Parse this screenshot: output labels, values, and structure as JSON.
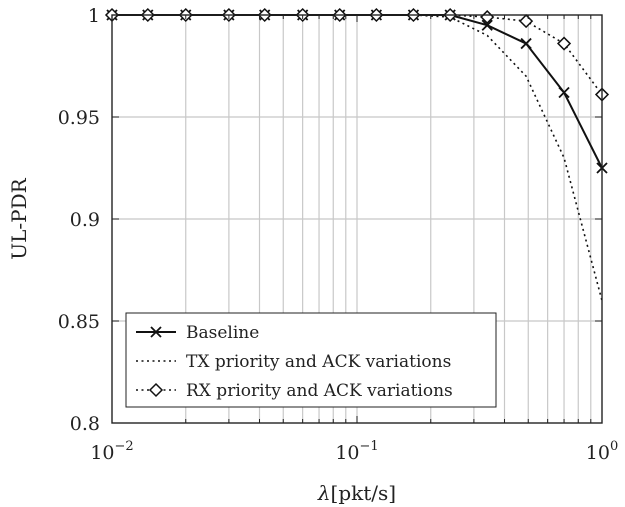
{
  "chart_data": {
    "type": "line",
    "xscale": "log",
    "xlim": [
      0.01,
      1
    ],
    "ylim": [
      0.8,
      1.0
    ],
    "xlabel_symbol": "λ",
    "xlabel_unit": "[pkt/s]",
    "ylabel": "UL-PDR",
    "xticks": [
      {
        "base": "10",
        "exp": "−2",
        "value": 0.01
      },
      {
        "base": "10",
        "exp": "−1",
        "value": 0.1
      },
      {
        "base": "10",
        "exp": "0",
        "value": 1
      }
    ],
    "yticks": [
      {
        "label": "0.8",
        "value": 0.8
      },
      {
        "label": "0.85",
        "value": 0.85
      },
      {
        "label": "0.9",
        "value": 0.9
      },
      {
        "label": "0.95",
        "value": 0.95
      },
      {
        "label": "1",
        "value": 1.0
      }
    ],
    "grid": true,
    "legend_position": "bottom-left",
    "series": [
      {
        "name": "Baseline",
        "style": "solid",
        "marker": "x",
        "x": [
          0.01,
          0.014,
          0.02,
          0.03,
          0.042,
          0.06,
          0.085,
          0.12,
          0.17,
          0.24,
          0.34,
          0.49,
          0.7,
          1.0
        ],
        "y": [
          1.0,
          1.0,
          1.0,
          1.0,
          1.0,
          1.0,
          1.0,
          1.0,
          1.0,
          1.0,
          0.995,
          0.986,
          0.962,
          0.925
        ]
      },
      {
        "name": "TX priority and ACK variations",
        "style": "dotted",
        "marker": "none",
        "x": [
          0.01,
          0.014,
          0.02,
          0.03,
          0.042,
          0.06,
          0.085,
          0.12,
          0.17,
          0.24,
          0.34,
          0.49,
          0.7,
          1.0
        ],
        "y": [
          1.0,
          1.0,
          1.0,
          1.0,
          1.0,
          1.0,
          1.0,
          1.0,
          1.0,
          0.999,
          0.99,
          0.97,
          0.93,
          0.86
        ]
      },
      {
        "name": "RX priority and ACK variations",
        "style": "dotted",
        "marker": "diamond",
        "x": [
          0.01,
          0.014,
          0.02,
          0.03,
          0.042,
          0.06,
          0.085,
          0.12,
          0.17,
          0.24,
          0.34,
          0.49,
          0.7,
          1.0
        ],
        "y": [
          1.0,
          1.0,
          1.0,
          1.0,
          1.0,
          1.0,
          1.0,
          1.0,
          1.0,
          1.0,
          0.999,
          0.997,
          0.986,
          0.961
        ]
      }
    ]
  }
}
